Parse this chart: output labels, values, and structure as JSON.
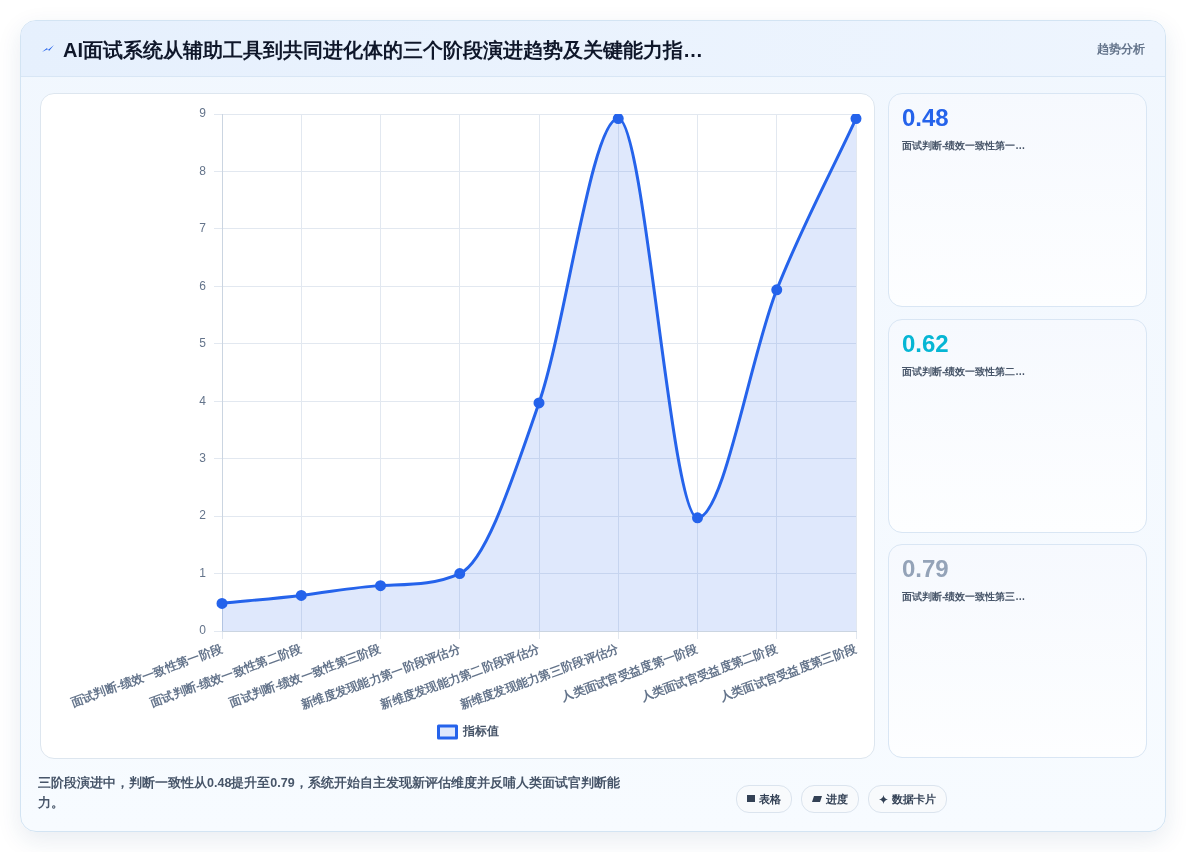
{
  "chart_data": [
    {
      "type": "area",
      "title": "AI面试系统从辅助工具到共同进化体的三个阶段演进趋势及关键能力指…",
      "categories": [
        "面试判断-绩效一致性第一阶段",
        "面试判断-绩效一致性第二阶段",
        "面试判断-绩效一致性第三阶段",
        "新维度发现能力第一阶段评估分",
        "新维度发现能力第二阶段评估分",
        "新维度发现能力第三阶段评估分",
        "人类面试官受益度第一阶段",
        "人类面试官受益度第二阶段",
        "人类面试官受益度第三阶段"
      ],
      "series": [
        {
          "name": "指标值",
          "color": "#2563eb",
          "values": [
            0.48,
            0.62,
            0.79,
            1,
            3.97,
            8.92,
            1.97,
            5.94,
            8.92
          ]
        }
      ],
      "ylim": [
        0,
        9
      ],
      "yticks": [
        0,
        1,
        2,
        3,
        4,
        5,
        6,
        7,
        8,
        9
      ],
      "grid": true,
      "legend": "bottom",
      "marker": "circle",
      "annotations": [
        "三阶段演进中，判断一致性从0.48提升至0.79，系统开始自主发现新评估维度并反哺人类面试官判断能力。",
        "表格",
        "进度",
        "数据卡片"
      ]
    },
    {
      "type": "other",
      "title": "趋势分析",
      "annotations": [
        "0.48",
        "面试判断-绩效一致性第一…",
        "0.62",
        "面试判断-绩效一致性第二…",
        "0.79",
        "面试判断-绩效一致性第三…"
      ]
    }
  ]
}
